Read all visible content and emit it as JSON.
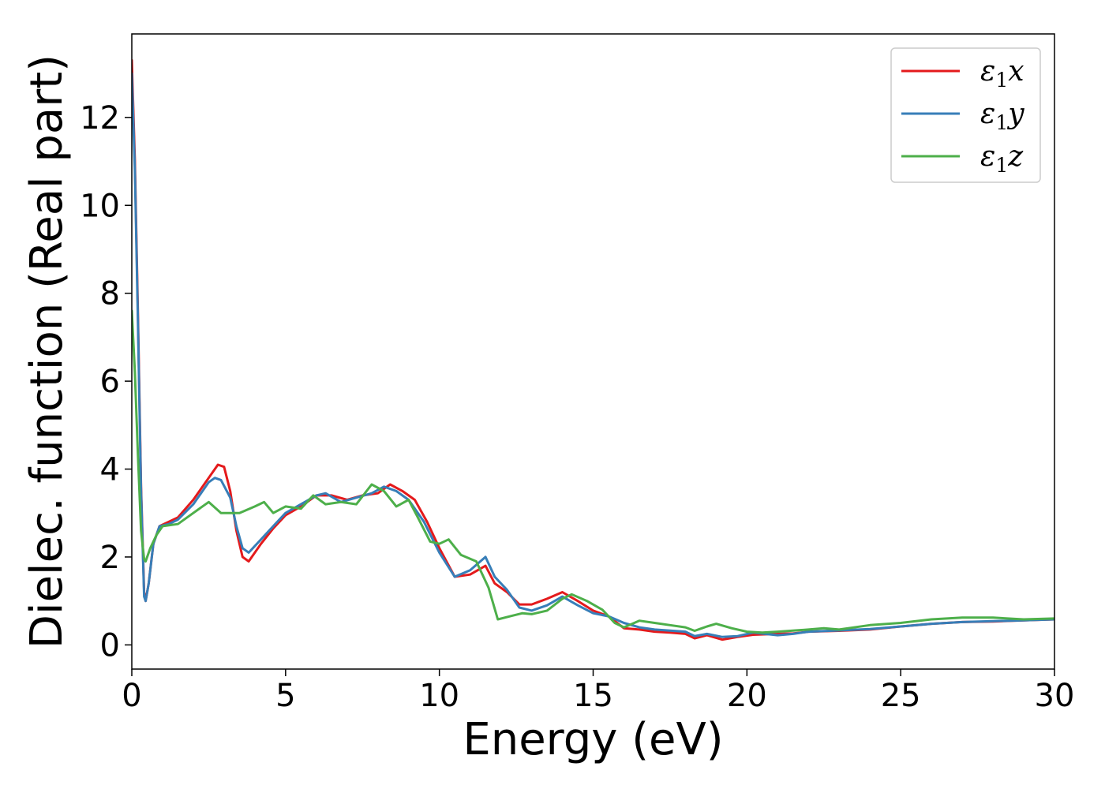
{
  "chart_data": {
    "type": "line",
    "xlabel": "Energy (eV)",
    "ylabel": "Dielec. function (Real part)",
    "xlim": [
      0,
      30
    ],
    "ylim": [
      -0.55,
      13.9
    ],
    "xticks": [
      0,
      5,
      10,
      15,
      20,
      25,
      30
    ],
    "yticks": [
      0,
      2,
      4,
      6,
      8,
      10,
      12
    ],
    "grid": false,
    "legend_position": "top-right",
    "series": [
      {
        "name": "ε1x",
        "legend": {
          "base": "ε",
          "sub": "1",
          "suffix": "x"
        },
        "color": "#e41a1c",
        "points": [
          [
            0,
            13.3
          ],
          [
            0.1,
            11.0
          ],
          [
            0.2,
            7.5
          ],
          [
            0.3,
            3.6
          ],
          [
            0.4,
            1.2
          ],
          [
            0.45,
            1.0
          ],
          [
            0.55,
            1.4
          ],
          [
            0.7,
            2.3
          ],
          [
            0.9,
            2.7
          ],
          [
            1.2,
            2.8
          ],
          [
            1.5,
            2.9
          ],
          [
            2.0,
            3.3
          ],
          [
            2.5,
            3.8
          ],
          [
            2.8,
            4.1
          ],
          [
            3.0,
            4.05
          ],
          [
            3.2,
            3.5
          ],
          [
            3.4,
            2.6
          ],
          [
            3.6,
            2.0
          ],
          [
            3.8,
            1.9
          ],
          [
            4.2,
            2.3
          ],
          [
            4.6,
            2.65
          ],
          [
            5.0,
            2.95
          ],
          [
            5.5,
            3.15
          ],
          [
            6.0,
            3.4
          ],
          [
            6.5,
            3.4
          ],
          [
            7.0,
            3.3
          ],
          [
            7.5,
            3.4
          ],
          [
            8.0,
            3.45
          ],
          [
            8.4,
            3.65
          ],
          [
            8.8,
            3.5
          ],
          [
            9.2,
            3.3
          ],
          [
            9.6,
            2.8
          ],
          [
            10.0,
            2.2
          ],
          [
            10.5,
            1.55
          ],
          [
            11.0,
            1.6
          ],
          [
            11.5,
            1.8
          ],
          [
            11.8,
            1.4
          ],
          [
            12.2,
            1.2
          ],
          [
            12.6,
            0.92
          ],
          [
            13.0,
            0.92
          ],
          [
            13.5,
            1.05
          ],
          [
            14.0,
            1.2
          ],
          [
            14.5,
            1.0
          ],
          [
            15.0,
            0.78
          ],
          [
            15.5,
            0.65
          ],
          [
            16.0,
            0.38
          ],
          [
            16.5,
            0.35
          ],
          [
            17.0,
            0.3
          ],
          [
            17.5,
            0.28
          ],
          [
            18.0,
            0.25
          ],
          [
            18.3,
            0.15
          ],
          [
            18.7,
            0.22
          ],
          [
            19.2,
            0.12
          ],
          [
            19.7,
            0.18
          ],
          [
            20.2,
            0.23
          ],
          [
            21.0,
            0.25
          ],
          [
            21.5,
            0.26
          ],
          [
            22.0,
            0.3
          ],
          [
            23.0,
            0.32
          ],
          [
            24.0,
            0.35
          ],
          [
            25.0,
            0.42
          ],
          [
            26.0,
            0.48
          ],
          [
            27.0,
            0.52
          ],
          [
            28.0,
            0.53
          ],
          [
            29.0,
            0.56
          ],
          [
            30.0,
            0.58
          ]
        ]
      },
      {
        "name": "ε1y",
        "legend": {
          "base": "ε",
          "sub": "1",
          "suffix": "y"
        },
        "color": "#377eb8",
        "points": [
          [
            0,
            13.0
          ],
          [
            0.1,
            10.8
          ],
          [
            0.2,
            7.3
          ],
          [
            0.3,
            3.5
          ],
          [
            0.4,
            1.1
          ],
          [
            0.45,
            1.0
          ],
          [
            0.55,
            1.4
          ],
          [
            0.7,
            2.3
          ],
          [
            0.9,
            2.7
          ],
          [
            1.2,
            2.75
          ],
          [
            1.5,
            2.85
          ],
          [
            2.0,
            3.2
          ],
          [
            2.5,
            3.7
          ],
          [
            2.7,
            3.8
          ],
          [
            2.9,
            3.75
          ],
          [
            3.2,
            3.35
          ],
          [
            3.4,
            2.7
          ],
          [
            3.6,
            2.2
          ],
          [
            3.8,
            2.1
          ],
          [
            4.2,
            2.4
          ],
          [
            4.6,
            2.7
          ],
          [
            5.0,
            3.0
          ],
          [
            5.5,
            3.2
          ],
          [
            6.0,
            3.4
          ],
          [
            6.3,
            3.45
          ],
          [
            6.8,
            3.25
          ],
          [
            7.3,
            3.35
          ],
          [
            7.8,
            3.45
          ],
          [
            8.2,
            3.6
          ],
          [
            8.6,
            3.5
          ],
          [
            9.0,
            3.3
          ],
          [
            9.5,
            2.8
          ],
          [
            10.0,
            2.1
          ],
          [
            10.5,
            1.55
          ],
          [
            11.0,
            1.7
          ],
          [
            11.5,
            2.0
          ],
          [
            11.8,
            1.55
          ],
          [
            12.2,
            1.25
          ],
          [
            12.6,
            0.85
          ],
          [
            13.0,
            0.78
          ],
          [
            13.5,
            0.9
          ],
          [
            14.0,
            1.1
          ],
          [
            14.5,
            0.9
          ],
          [
            15.0,
            0.72
          ],
          [
            15.5,
            0.65
          ],
          [
            16.0,
            0.5
          ],
          [
            16.5,
            0.4
          ],
          [
            17.0,
            0.35
          ],
          [
            18.0,
            0.3
          ],
          [
            18.3,
            0.2
          ],
          [
            18.7,
            0.25
          ],
          [
            19.2,
            0.18
          ],
          [
            19.7,
            0.2
          ],
          [
            20.2,
            0.28
          ],
          [
            21.0,
            0.22
          ],
          [
            21.5,
            0.25
          ],
          [
            22.0,
            0.3
          ],
          [
            23.0,
            0.33
          ],
          [
            24.0,
            0.36
          ],
          [
            25.0,
            0.42
          ],
          [
            26.0,
            0.48
          ],
          [
            27.0,
            0.52
          ],
          [
            28.0,
            0.54
          ],
          [
            29.0,
            0.56
          ],
          [
            30.0,
            0.58
          ]
        ]
      },
      {
        "name": "ε1z",
        "legend": {
          "base": "ε",
          "sub": "1",
          "suffix": "z"
        },
        "color": "#4daf4a",
        "points": [
          [
            0,
            7.6
          ],
          [
            0.1,
            6.2
          ],
          [
            0.2,
            4.3
          ],
          [
            0.3,
            2.6
          ],
          [
            0.4,
            1.95
          ],
          [
            0.45,
            1.9
          ],
          [
            0.6,
            2.2
          ],
          [
            0.8,
            2.5
          ],
          [
            1.0,
            2.7
          ],
          [
            1.5,
            2.75
          ],
          [
            2.0,
            3.0
          ],
          [
            2.5,
            3.25
          ],
          [
            2.9,
            3.0
          ],
          [
            3.5,
            3.0
          ],
          [
            4.0,
            3.15
          ],
          [
            4.3,
            3.25
          ],
          [
            4.6,
            3.0
          ],
          [
            5.0,
            3.15
          ],
          [
            5.5,
            3.1
          ],
          [
            5.9,
            3.4
          ],
          [
            6.3,
            3.2
          ],
          [
            6.8,
            3.25
          ],
          [
            7.3,
            3.2
          ],
          [
            7.8,
            3.65
          ],
          [
            8.2,
            3.5
          ],
          [
            8.6,
            3.15
          ],
          [
            9.0,
            3.3
          ],
          [
            9.3,
            2.9
          ],
          [
            9.7,
            2.35
          ],
          [
            10.0,
            2.3
          ],
          [
            10.3,
            2.4
          ],
          [
            10.7,
            2.05
          ],
          [
            11.2,
            1.9
          ],
          [
            11.6,
            1.3
          ],
          [
            11.9,
            0.58
          ],
          [
            12.3,
            0.65
          ],
          [
            12.7,
            0.72
          ],
          [
            13.0,
            0.7
          ],
          [
            13.5,
            0.78
          ],
          [
            14.0,
            1.05
          ],
          [
            14.3,
            1.15
          ],
          [
            14.8,
            1.0
          ],
          [
            15.3,
            0.8
          ],
          [
            15.7,
            0.5
          ],
          [
            16.0,
            0.4
          ],
          [
            16.5,
            0.55
          ],
          [
            17.0,
            0.5
          ],
          [
            17.5,
            0.45
          ],
          [
            18.0,
            0.4
          ],
          [
            18.3,
            0.32
          ],
          [
            18.7,
            0.42
          ],
          [
            19.0,
            0.48
          ],
          [
            19.5,
            0.38
          ],
          [
            20.0,
            0.3
          ],
          [
            20.5,
            0.28
          ],
          [
            21.0,
            0.3
          ],
          [
            22.0,
            0.35
          ],
          [
            22.5,
            0.38
          ],
          [
            23.0,
            0.35
          ],
          [
            24.0,
            0.45
          ],
          [
            25.0,
            0.5
          ],
          [
            26.0,
            0.58
          ],
          [
            27.0,
            0.62
          ],
          [
            28.0,
            0.62
          ],
          [
            29.0,
            0.58
          ],
          [
            30.0,
            0.6
          ]
        ]
      }
    ]
  }
}
